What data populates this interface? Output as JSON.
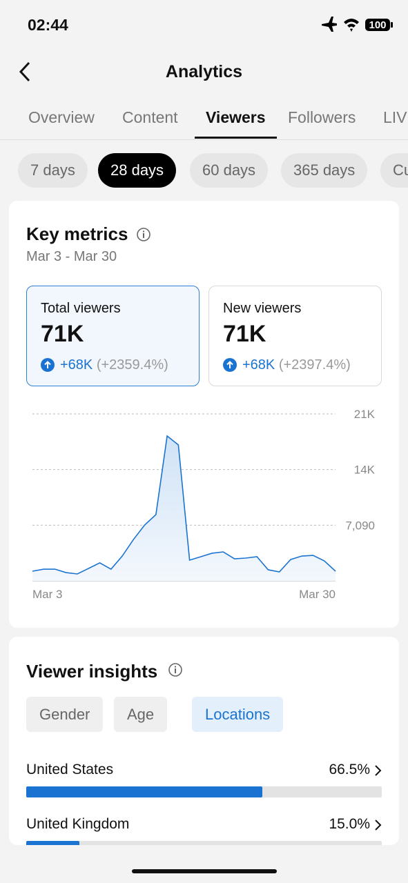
{
  "status_bar": {
    "time": "02:44",
    "battery": "100"
  },
  "header": {
    "title": "Analytics"
  },
  "tabs": {
    "items": [
      "Overview",
      "Content",
      "Viewers",
      "Followers",
      "LIVE"
    ],
    "selected": 2
  },
  "ranges": {
    "items": [
      "7 days",
      "28 days",
      "60 days",
      "365 days",
      "Custom"
    ],
    "selected": 1
  },
  "key_metrics": {
    "title": "Key metrics",
    "date_range": "Mar 3 - Mar 30",
    "cards": [
      {
        "label": "Total viewers",
        "value": "71K",
        "change": "+68K",
        "percent": "(+2359.4%)"
      },
      {
        "label": "New viewers",
        "value": "71K",
        "change": "+68K",
        "percent": "(+2397.4%)"
      }
    ]
  },
  "chart_data": {
    "type": "line",
    "categories": [
      "Mar 3",
      null,
      null,
      null,
      null,
      null,
      null,
      null,
      null,
      null,
      null,
      null,
      null,
      null,
      null,
      null,
      null,
      null,
      null,
      null,
      null,
      null,
      null,
      null,
      null,
      null,
      null,
      "Mar 30"
    ],
    "series": [
      {
        "name": "Total viewers",
        "color": "#1a73d0",
        "values": [
          1230,
          1490,
          1490,
          1050,
          880,
          1580,
          2290,
          1490,
          3160,
          5270,
          7120,
          8440,
          18460,
          17320,
          2640,
          3080,
          3520,
          3690,
          2810,
          2900,
          3080,
          1410,
          1140,
          2720,
          3160,
          3250,
          2550,
          1230
        ]
      }
    ],
    "ylim": [
      0,
      21270
    ],
    "yticks": [
      {
        "value": 7090,
        "label": "7,090"
      },
      {
        "value": 14180,
        "label": "14K"
      },
      {
        "value": 21270,
        "label": "21K"
      }
    ],
    "grid": true
  },
  "viewer_insights": {
    "title": "Viewer insights",
    "filters": {
      "items": [
        "Gender",
        "Age",
        "Locations"
      ],
      "selected": 2
    },
    "locations": {
      "names": [
        "United States",
        "United Kingdom"
      ],
      "values": [
        66.5,
        15.0
      ],
      "value_labels": [
        "66.5%",
        "15.0%"
      ]
    }
  }
}
